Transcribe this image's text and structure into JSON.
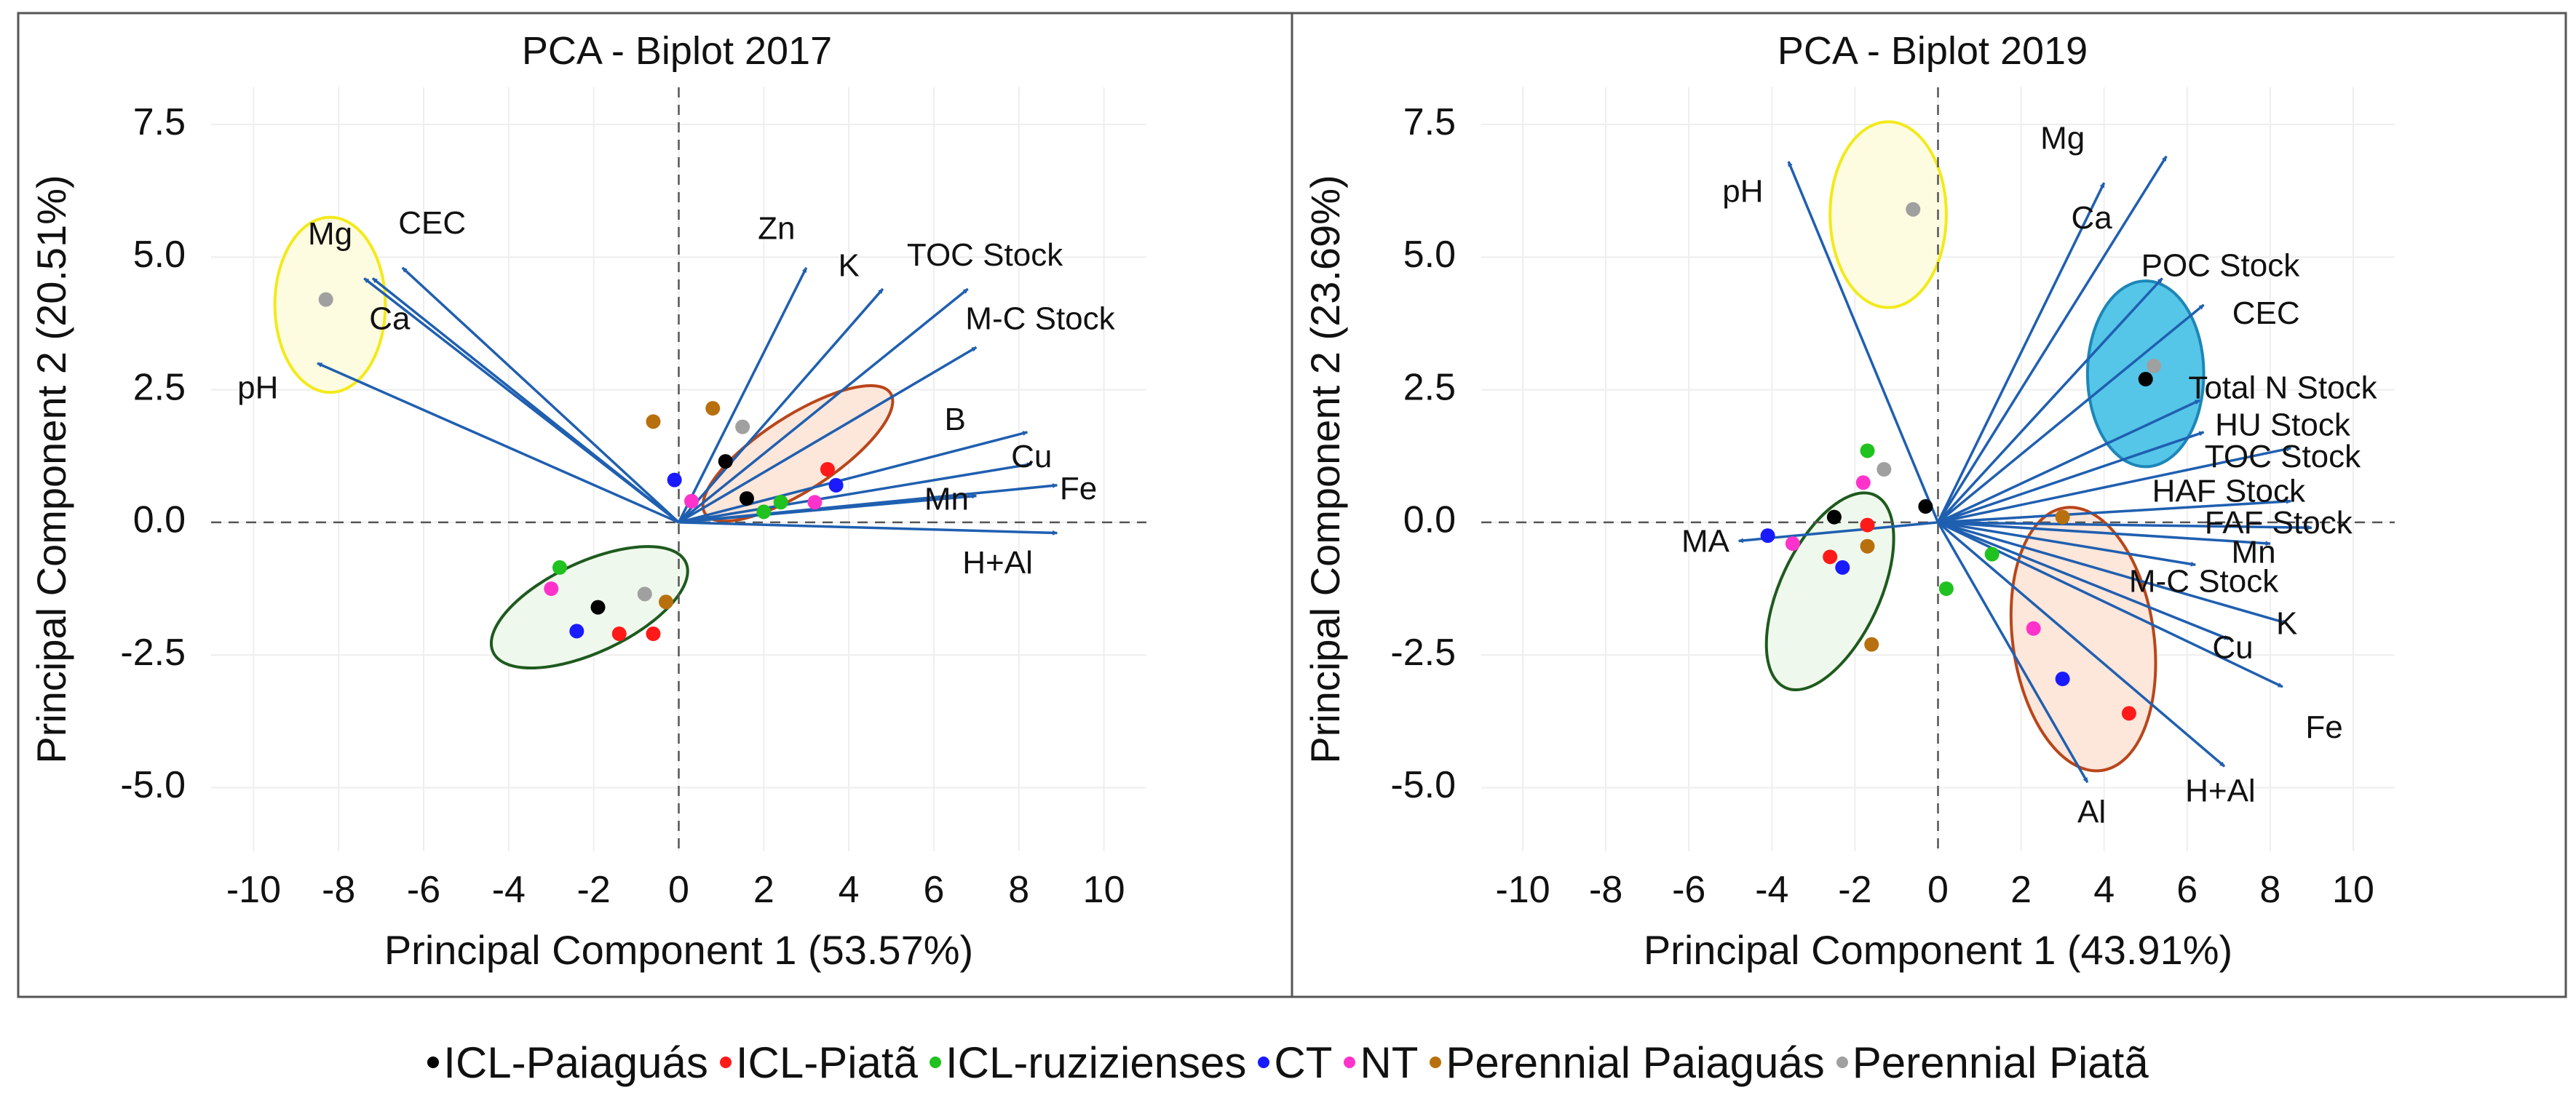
{
  "chart_data": [
    {
      "type": "scatter",
      "subtype": "pca-biplot",
      "title": "PCA - Biplot 2017",
      "xlabel": "Principal Component 1 (53.57%)",
      "ylabel": "Principal Component 2 (20.51%)",
      "xlim": [
        -11,
        11
      ],
      "ylim": [
        -6.2,
        8.2
      ],
      "xticks": [
        -10,
        -8,
        -6,
        -4,
        -2,
        0,
        2,
        4,
        6,
        8,
        10
      ],
      "xtick_labels": [
        "-10",
        "-8",
        "-6",
        "-4",
        "-2",
        "0",
        "2",
        "4",
        "6",
        "8",
        "10"
      ],
      "yticks": [
        -5,
        -2.5,
        0,
        2.5,
        5,
        7.5
      ],
      "ytick_labels": [
        "-5.0",
        "-2.5",
        "0.0",
        "2.5",
        "5.0",
        "7.5"
      ],
      "grid": true,
      "vectors": [
        {
          "name": "Mg",
          "x": -7.4,
          "y": 4.6,
          "lx": -8.2,
          "ly": 5.4
        },
        {
          "name": "CEC",
          "x": -6.5,
          "y": 4.8,
          "lx": -5.8,
          "ly": 5.6
        },
        {
          "name": "Ca",
          "x": -7.2,
          "y": 4.6,
          "lx": -6.8,
          "ly": 3.8
        },
        {
          "name": "pH",
          "x": -8.5,
          "y": 3.0,
          "lx": -9.9,
          "ly": 2.5
        },
        {
          "name": "Zn",
          "x": 3.0,
          "y": 4.8,
          "lx": 2.3,
          "ly": 5.5
        },
        {
          "name": "K",
          "x": 4.8,
          "y": 4.4,
          "lx": 4.0,
          "ly": 4.8
        },
        {
          "name": "TOC Stock",
          "x": 6.8,
          "y": 4.4,
          "lx": 7.2,
          "ly": 5.0
        },
        {
          "name": "M-C Stock",
          "x": 7.0,
          "y": 3.3,
          "lx": 8.5,
          "ly": 3.8
        },
        {
          "name": "B",
          "x": 8.2,
          "y": 1.7,
          "lx": 6.5,
          "ly": 1.9
        },
        {
          "name": "Cu",
          "x": 8.3,
          "y": 1.1,
          "lx": 8.3,
          "ly": 1.2
        },
        {
          "name": "Fe",
          "x": 8.9,
          "y": 0.7,
          "lx": 9.4,
          "ly": 0.6
        },
        {
          "name": "Mn",
          "x": 7.0,
          "y": 0.5,
          "lx": 6.3,
          "ly": 0.4
        },
        {
          "name": "H+Al",
          "x": 8.9,
          "y": -0.2,
          "lx": 7.5,
          "ly": -0.8
        }
      ],
      "points": [
        {
          "group": "Perennial Piatã",
          "x": -8.3,
          "y": 4.2
        },
        {
          "group": "Perennial Paiaguás",
          "x": -0.6,
          "y": 1.9
        },
        {
          "group": "Perennial Paiaguás",
          "x": 0.8,
          "y": 2.15
        },
        {
          "group": "Perennial Piatã",
          "x": 1.5,
          "y": 1.8
        },
        {
          "group": "ICL-Paiaguás",
          "x": 1.1,
          "y": 1.15
        },
        {
          "group": "CT",
          "x": -0.1,
          "y": 0.8
        },
        {
          "group": "NT",
          "x": 0.3,
          "y": 0.4
        },
        {
          "group": "ICL-Paiaguás",
          "x": 1.6,
          "y": 0.45
        },
        {
          "group": "ICL-ruzizienses",
          "x": 2.0,
          "y": 0.2
        },
        {
          "group": "ICL-ruzizienses",
          "x": 2.4,
          "y": 0.38
        },
        {
          "group": "NT",
          "x": 3.2,
          "y": 0.38
        },
        {
          "group": "ICL-Piatã",
          "x": 3.5,
          "y": 1.0
        },
        {
          "group": "CT",
          "x": 3.7,
          "y": 0.7
        },
        {
          "group": "ICL-ruzizienses",
          "x": -2.8,
          "y": -0.85
        },
        {
          "group": "NT",
          "x": -3.0,
          "y": -1.25
        },
        {
          "group": "ICL-Paiaguás",
          "x": -1.9,
          "y": -1.6
        },
        {
          "group": "Perennial Piatã",
          "x": -0.8,
          "y": -1.35
        },
        {
          "group": "Perennial Paiaguás",
          "x": -0.3,
          "y": -1.5
        },
        {
          "group": "CT",
          "x": -2.4,
          "y": -2.05
        },
        {
          "group": "ICL-Piatã",
          "x": -1.4,
          "y": -2.1
        },
        {
          "group": "ICL-Piatã",
          "x": -0.6,
          "y": -2.1
        }
      ],
      "ellipses": [
        {
          "color": "yellow",
          "cx": -8.2,
          "cy": 4.1,
          "rx": 1.3,
          "ry": 1.65,
          "angle": 0
        },
        {
          "color": "orange",
          "cx": 2.8,
          "cy": 1.3,
          "rx": 2.6,
          "ry": 0.7,
          "angle": -33
        },
        {
          "color": "green",
          "cx": -2.1,
          "cy": -1.6,
          "rx": 2.5,
          "ry": 0.85,
          "angle": -25
        }
      ]
    },
    {
      "type": "scatter",
      "subtype": "pca-biplot",
      "title": "PCA - Biplot 2019",
      "xlabel": "Principal Component 1 (43.91%)",
      "ylabel": "Principal Component 2 (23.69%)",
      "xlim": [
        -11,
        11
      ],
      "ylim": [
        -6.2,
        8.2
      ],
      "xticks": [
        -10,
        -8,
        -6,
        -4,
        -2,
        0,
        2,
        4,
        6,
        8,
        10
      ],
      "xtick_labels": [
        "-10",
        "-8",
        "-6",
        "-4",
        "-2",
        "0",
        "2",
        "4",
        "6",
        "8",
        "10"
      ],
      "yticks": [
        -5,
        -2.5,
        0,
        2.5,
        5,
        7.5
      ],
      "ytick_labels": [
        "-5.0",
        "-2.5",
        "0.0",
        "2.5",
        "5.0",
        "7.5"
      ],
      "grid": true,
      "vectors": [
        {
          "name": "pH",
          "x": -3.6,
          "y": 6.8,
          "lx": -4.7,
          "ly": 6.2
        },
        {
          "name": "Mg",
          "x": 5.5,
          "y": 6.9,
          "lx": 3.0,
          "ly": 7.2
        },
        {
          "name": "Ca",
          "x": 4.0,
          "y": 6.4,
          "lx": 3.7,
          "ly": 5.7
        },
        {
          "name": "POC Stock",
          "x": 5.4,
          "y": 4.6,
          "lx": 6.8,
          "ly": 4.8
        },
        {
          "name": "CEC",
          "x": 6.4,
          "y": 4.1,
          "lx": 7.9,
          "ly": 3.9
        },
        {
          "name": "Total N Stock",
          "x": 6.3,
          "y": 2.3,
          "lx": 8.3,
          "ly": 2.5
        },
        {
          "name": "HU Stock",
          "x": 6.4,
          "y": 1.7,
          "lx": 8.3,
          "ly": 1.8
        },
        {
          "name": "TOC Stock",
          "x": 8.5,
          "y": 1.4,
          "lx": 8.3,
          "ly": 1.2
        },
        {
          "name": "HAF Stock",
          "x": 8.5,
          "y": 0.4,
          "lx": 7.0,
          "ly": 0.55
        },
        {
          "name": "FAF Stock",
          "x": 9.0,
          "y": -0.1,
          "lx": 8.2,
          "ly": -0.05
        },
        {
          "name": "Mn",
          "x": 8.0,
          "y": -0.4,
          "lx": 7.6,
          "ly": -0.6
        },
        {
          "name": "M-C Stock",
          "x": 6.2,
          "y": -0.8,
          "lx": 6.4,
          "ly": -1.15
        },
        {
          "name": "K",
          "x": 8.4,
          "y": -1.9,
          "lx": 8.4,
          "ly": -1.95
        },
        {
          "name": "Cu",
          "x": 7.0,
          "y": -2.2,
          "lx": 7.1,
          "ly": -2.4
        },
        {
          "name": "Fe",
          "x": 8.3,
          "y": -3.1,
          "lx": 9.3,
          "ly": -3.9
        },
        {
          "name": "H+Al",
          "x": 6.9,
          "y": -4.6,
          "lx": 6.8,
          "ly": -5.1
        },
        {
          "name": "Al",
          "x": 3.6,
          "y": -4.9,
          "lx": 3.7,
          "ly": -5.5
        },
        {
          "name": "MA",
          "x": -4.8,
          "y": -0.35,
          "lx": -5.6,
          "ly": -0.4
        }
      ],
      "points": [
        {
          "group": "Perennial Piatã",
          "x": -0.6,
          "y": 5.9
        },
        {
          "group": "Perennial Piatã",
          "x": 5.2,
          "y": 2.95
        },
        {
          "group": "ICL-Paiaguás",
          "x": 5.0,
          "y": 2.7
        },
        {
          "group": "ICL-ruzizienses",
          "x": -1.7,
          "y": 1.35
        },
        {
          "group": "Perennial Piatã",
          "x": -1.3,
          "y": 1.0
        },
        {
          "group": "NT",
          "x": -1.8,
          "y": 0.75
        },
        {
          "group": "ICL-Paiaguás",
          "x": -0.3,
          "y": 0.3
        },
        {
          "group": "ICL-Paiaguás",
          "x": -2.5,
          "y": 0.1
        },
        {
          "group": "ICL-Piatã",
          "x": -1.7,
          "y": -0.05
        },
        {
          "group": "CT",
          "x": -4.1,
          "y": -0.25
        },
        {
          "group": "NT",
          "x": -3.5,
          "y": -0.4
        },
        {
          "group": "Perennial Paiaguás",
          "x": -1.7,
          "y": -0.45
        },
        {
          "group": "ICL-Piatã",
          "x": -2.6,
          "y": -0.65
        },
        {
          "group": "CT",
          "x": -2.3,
          "y": -0.85
        },
        {
          "group": "Perennial Paiaguás",
          "x": 3.0,
          "y": 0.1
        },
        {
          "group": "ICL-ruzizienses",
          "x": 1.3,
          "y": -0.6
        },
        {
          "group": "ICL-ruzizienses",
          "x": 0.2,
          "y": -1.25
        },
        {
          "group": "NT",
          "x": 2.3,
          "y": -2.0
        },
        {
          "group": "Perennial Paiaguás",
          "x": -1.6,
          "y": -2.3
        },
        {
          "group": "CT",
          "x": 3.0,
          "y": -2.95
        },
        {
          "group": "ICL-Piatã",
          "x": 4.6,
          "y": -3.6
        }
      ],
      "ellipses": [
        {
          "color": "yellow",
          "cx": -1.2,
          "cy": 5.8,
          "rx": 1.4,
          "ry": 1.75,
          "angle": 0
        },
        {
          "color": "cyan",
          "cx": 5.0,
          "cy": 2.8,
          "rx": 1.4,
          "ry": 1.75,
          "angle": 0
        },
        {
          "color": "orange",
          "cx": 3.5,
          "cy": -2.2,
          "rx": 1.7,
          "ry": 2.5,
          "angle": -8
        },
        {
          "color": "green",
          "cx": -2.6,
          "cy": -1.3,
          "rx": 1.2,
          "ry": 2.0,
          "angle": 25
        }
      ]
    }
  ],
  "legend": [
    {
      "label": "ICL-Paiaguás",
      "color": "#000000"
    },
    {
      "label": "ICL-Piatã",
      "color": "#ff1a1a"
    },
    {
      "label": "ICL-ruzizienses",
      "color": "#1fc21f"
    },
    {
      "label": "CT",
      "color": "#1a1aff"
    },
    {
      "label": "NT",
      "color": "#ff33cc"
    },
    {
      "label": "Perennial Paiaguás",
      "color": "#b8700f"
    },
    {
      "label": "Perennial Piatã",
      "color": "#a0a0a0"
    }
  ],
  "colors": {
    "arrow": "#1f5fb0",
    "yellow_stroke": "#f2ea1a",
    "yellow_fill": "#fdfbe0",
    "orange_stroke": "#b8461a",
    "orange_fill": "#fde6da",
    "green_stroke": "#1e5a1e",
    "green_fill": "#eff8ec",
    "cyan_stroke": "#1d86b8",
    "cyan_fill": "#55c6e8"
  }
}
